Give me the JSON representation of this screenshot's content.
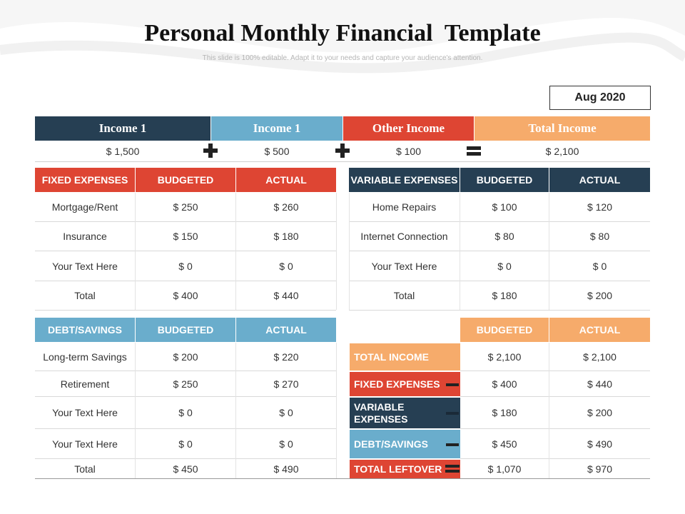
{
  "header": {
    "title": "Personal Monthly Financial  Template",
    "subtitle": "This slide is 100% editable. Adapt it to your needs and capture your audience's attention.",
    "month": "Aug 2020"
  },
  "colors": {
    "navy": "#263F53",
    "blue": "#6AADCC",
    "red": "#DE4533",
    "orange": "#F6AB6B"
  },
  "income": {
    "items": [
      {
        "label": "Income 1",
        "value": "$ 1,500"
      },
      {
        "label": "Income 1",
        "value": "$ 500"
      },
      {
        "label": "Other Income",
        "value": "$ 100"
      },
      {
        "label": "Total Income",
        "value": "$ 2,100"
      }
    ],
    "operators": [
      "plus-icon",
      "plus-icon",
      "equals-icon"
    ]
  },
  "fixed_expenses": {
    "headers": [
      "FIXED EXPENSES",
      "BUDGETED",
      "ACTUAL"
    ],
    "rows": [
      [
        "Mortgage/Rent",
        "$ 250",
        "$ 260"
      ],
      [
        "Insurance",
        "$ 150",
        "$ 180"
      ],
      [
        "Your Text Here",
        "$ 0",
        "$ 0"
      ],
      [
        "Total",
        "$ 400",
        "$ 440"
      ]
    ]
  },
  "variable_expenses": {
    "headers": [
      "VARIABLE EXPENSES",
      "BUDGETED",
      "ACTUAL"
    ],
    "rows": [
      [
        "Home Repairs",
        "$ 100",
        "$ 120"
      ],
      [
        "Internet Connection",
        "$ 80",
        "$ 80"
      ],
      [
        "Your Text Here",
        "$ 0",
        "$ 0"
      ],
      [
        "Total",
        "$ 180",
        "$ 200"
      ]
    ]
  },
  "debt_savings": {
    "headers": [
      "DEBT/SAVINGS",
      "BUDGETED",
      "ACTUAL"
    ],
    "rows": [
      [
        "Long-term Savings",
        "$ 200",
        "$ 220"
      ],
      [
        "Retirement",
        "$ 250",
        "$ 270"
      ],
      [
        "Your Text Here",
        "$ 0",
        "$ 0"
      ],
      [
        "Your Text Here",
        "$ 0",
        "$ 0"
      ],
      [
        "Total",
        "$ 450",
        "$ 490"
      ]
    ]
  },
  "summary": {
    "headers": [
      "BUDGETED",
      "ACTUAL"
    ],
    "rows": [
      {
        "label": "TOTAL INCOME",
        "budgeted": "$ 2,100",
        "actual": "$ 2,100",
        "color": "#F6AB6B",
        "operator": ""
      },
      {
        "label": "FIXED EXPENSES",
        "budgeted": "$ 400",
        "actual": "$ 440",
        "color": "#DE4533",
        "operator": "minus-icon"
      },
      {
        "label": "VARIABLE\nEXPENSES",
        "budgeted": "$ 180",
        "actual": "$ 200",
        "color": "#263F53",
        "operator": "minus-icon"
      },
      {
        "label": "DEBT/SAVINGS",
        "budgeted": "$ 450",
        "actual": "$ 490",
        "color": "#6AADCC",
        "operator": "minus-icon"
      },
      {
        "label": "TOTAL LEFTOVER",
        "budgeted": "$ 1,070",
        "actual": "$ 970",
        "color": "#DE4533",
        "operator": "equals-icon"
      }
    ]
  }
}
